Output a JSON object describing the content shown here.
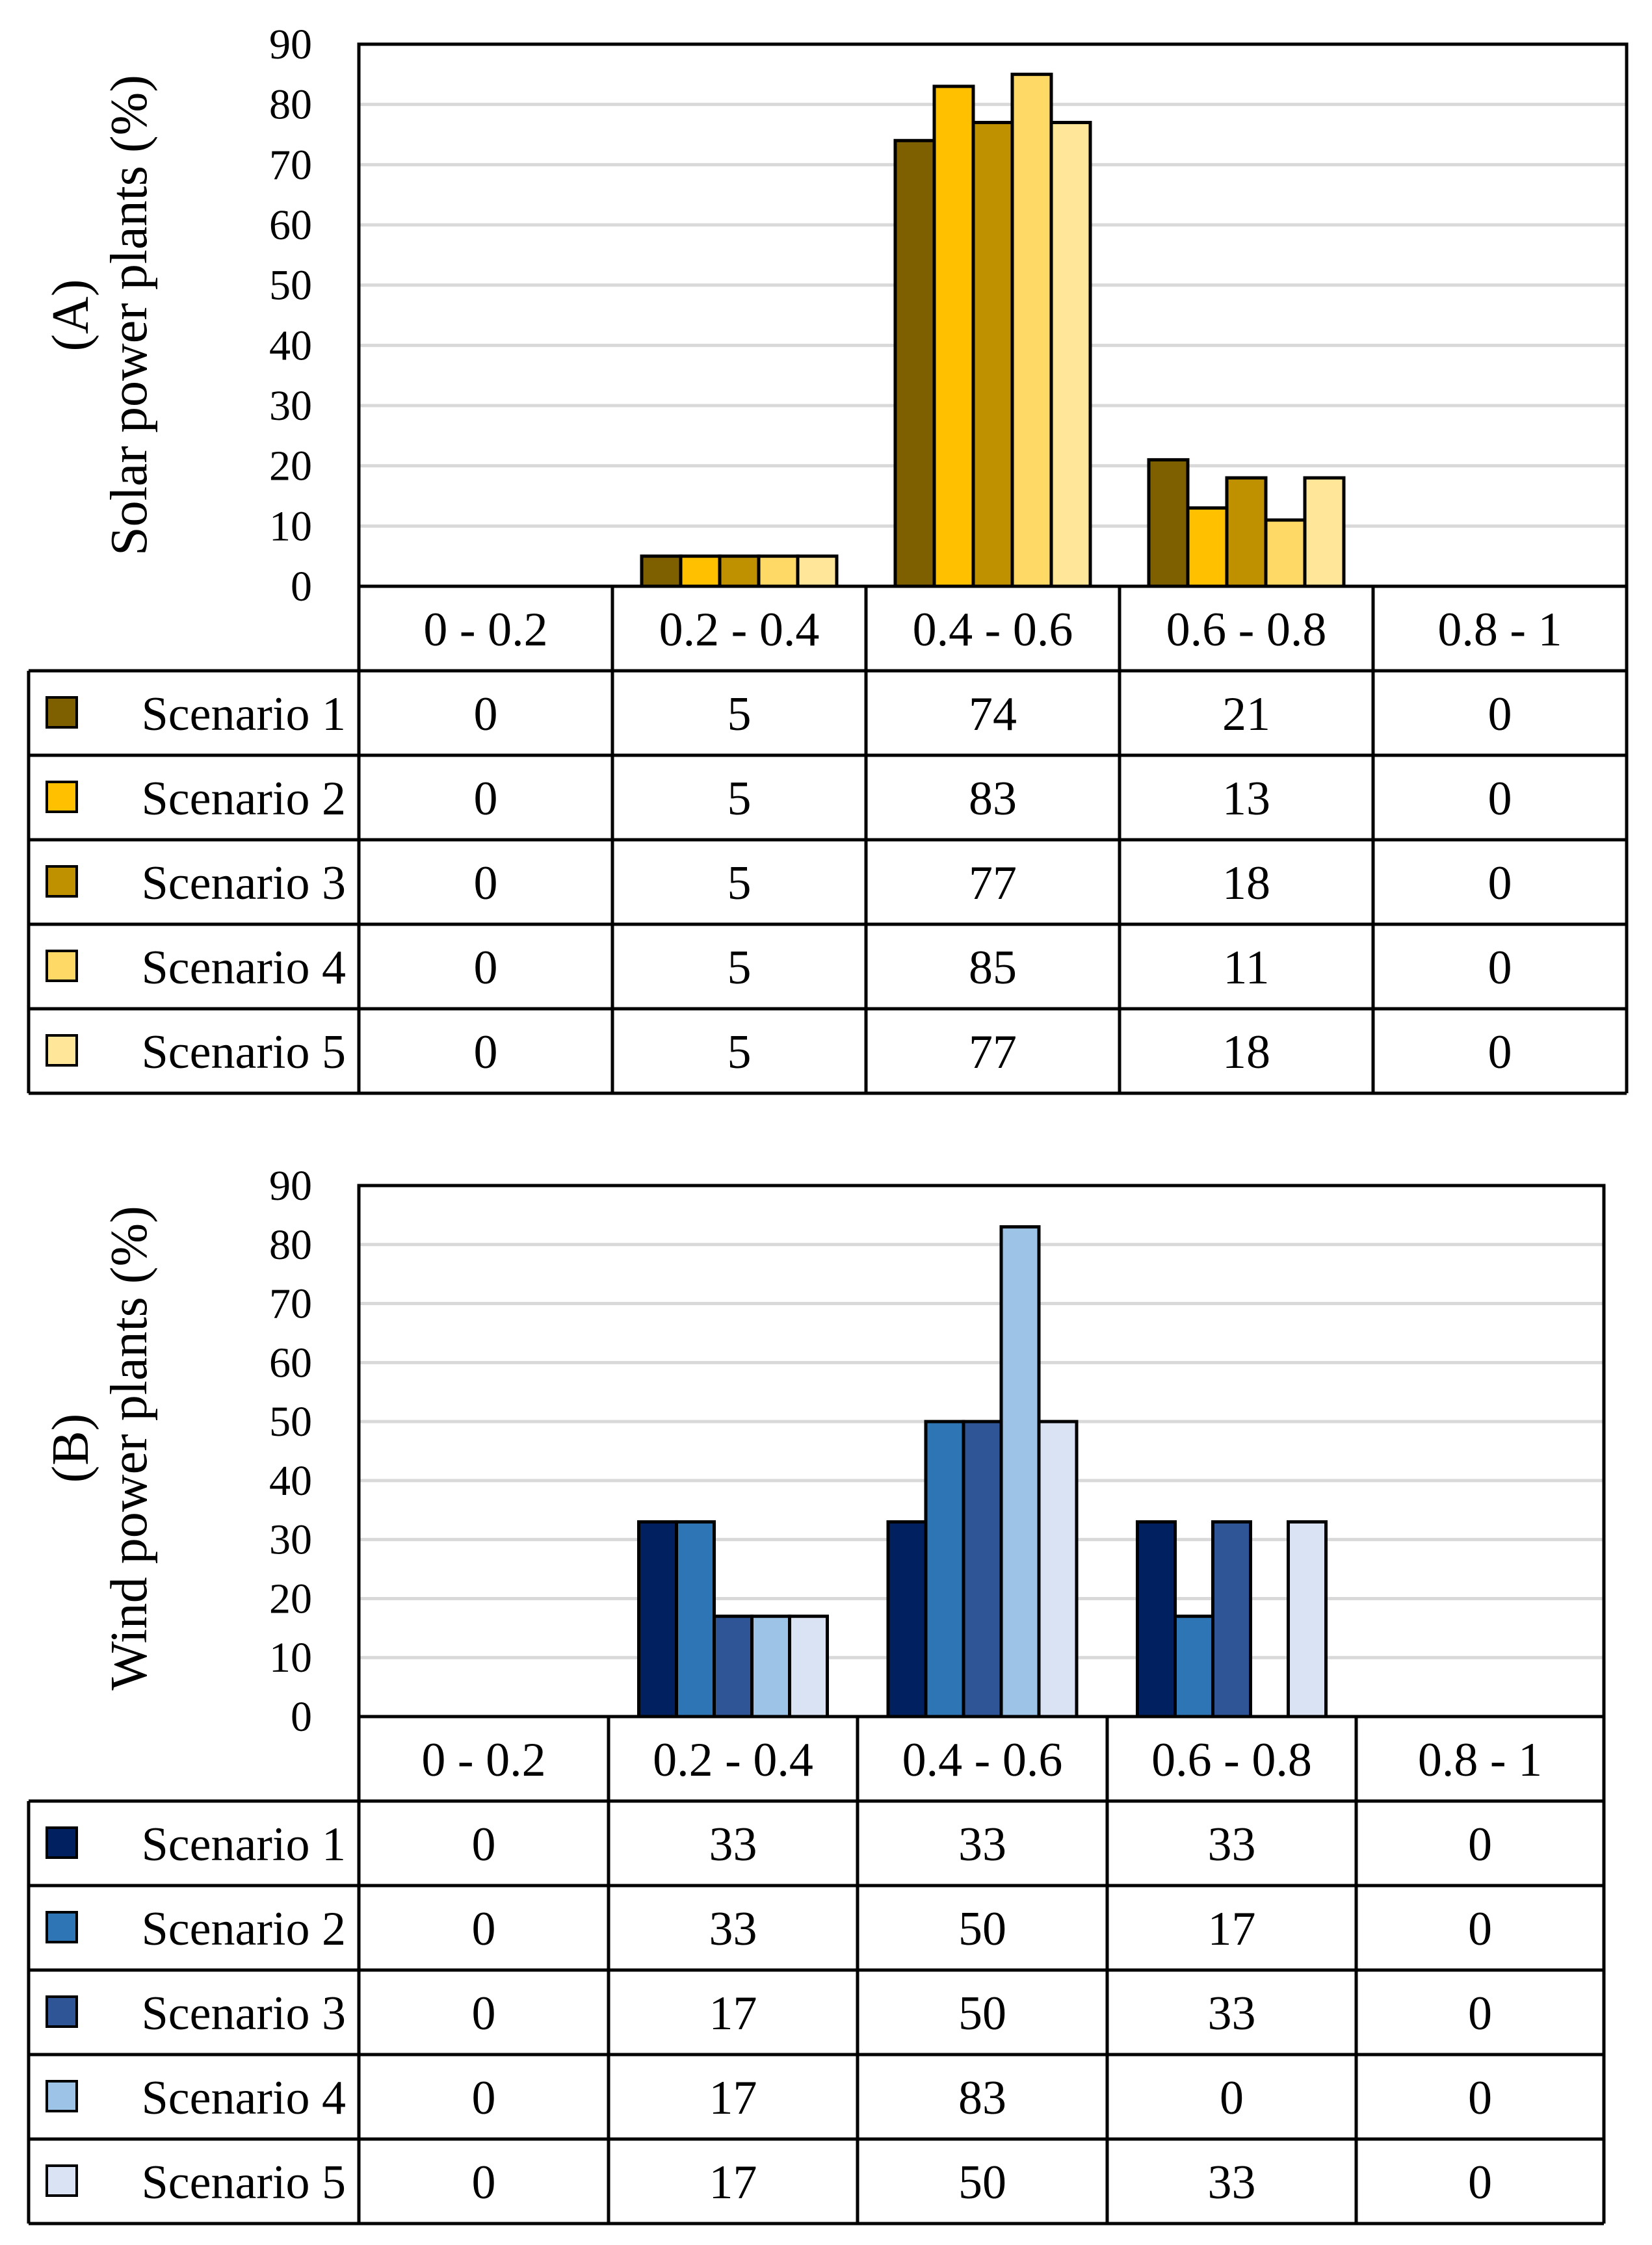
{
  "chart_data": [
    {
      "type": "bar",
      "panel_label": "(A)",
      "ylabel": "Solar power plants (%)",
      "ylim": [
        0,
        90
      ],
      "yticks": [
        "0",
        "10",
        "20",
        "30",
        "40",
        "50",
        "60",
        "70",
        "80",
        "90"
      ],
      "grid": true,
      "categories": [
        "0 - 0.2",
        "0.2 - 0.4",
        "0.4 - 0.6",
        "0.6 - 0.8",
        "0.8 - 1"
      ],
      "series": [
        {
          "name": "Scenario 1",
          "color": "#7f6000",
          "values": [
            0,
            5,
            74,
            21,
            0
          ],
          "labels": [
            "0",
            "5",
            "74",
            "21",
            "0"
          ]
        },
        {
          "name": "Scenario 2",
          "color": "#ffc000",
          "values": [
            0,
            5,
            83,
            13,
            0
          ],
          "labels": [
            "0",
            "5",
            "83",
            "13",
            "0"
          ]
        },
        {
          "name": "Scenario 3",
          "color": "#bf9000",
          "values": [
            0,
            5,
            77,
            18,
            0
          ],
          "labels": [
            "0",
            "5",
            "77",
            "18",
            "0"
          ]
        },
        {
          "name": "Scenario 4",
          "color": "#ffd966",
          "values": [
            0,
            5,
            85,
            11,
            0
          ],
          "labels": [
            "0",
            "5",
            "85",
            "11",
            "0"
          ]
        },
        {
          "name": "Scenario 5",
          "color": "#ffe699",
          "values": [
            0,
            5,
            77,
            18,
            0
          ],
          "labels": [
            "0",
            "5",
            "77",
            "18",
            "0"
          ]
        }
      ]
    },
    {
      "type": "bar",
      "panel_label": "(B)",
      "ylabel": "Wind power plants (%)",
      "ylim": [
        0,
        90
      ],
      "yticks": [
        "0",
        "10",
        "20",
        "30",
        "40",
        "50",
        "60",
        "70",
        "80",
        "90"
      ],
      "grid": true,
      "categories": [
        "0 - 0.2",
        "0.2 - 0.4",
        "0.4 - 0.6",
        "0.6 - 0.8",
        "0.8 - 1"
      ],
      "series": [
        {
          "name": "Scenario 1",
          "color": "#002060",
          "values": [
            0,
            33,
            33,
            33,
            0
          ],
          "labels": [
            "0",
            "33",
            "33",
            "33",
            "0"
          ]
        },
        {
          "name": "Scenario 2",
          "color": "#2e75b6",
          "values": [
            0,
            33,
            50,
            17,
            0
          ],
          "labels": [
            "0",
            "33",
            "50",
            "17",
            "0"
          ]
        },
        {
          "name": "Scenario 3",
          "color": "#2f5597",
          "values": [
            0,
            17,
            50,
            33,
            0
          ],
          "labels": [
            "0",
            "17",
            "50",
            "33",
            "0"
          ]
        },
        {
          "name": "Scenario 4",
          "color": "#9dc3e6",
          "values": [
            0,
            17,
            83,
            0,
            0
          ],
          "labels": [
            "0",
            "17",
            "83",
            "0",
            "0"
          ]
        },
        {
          "name": "Scenario 5",
          "color": "#dae3f3",
          "values": [
            0,
            17,
            50,
            33,
            0
          ],
          "labels": [
            "0",
            "17",
            "50",
            "33",
            "0"
          ]
        }
      ]
    }
  ]
}
